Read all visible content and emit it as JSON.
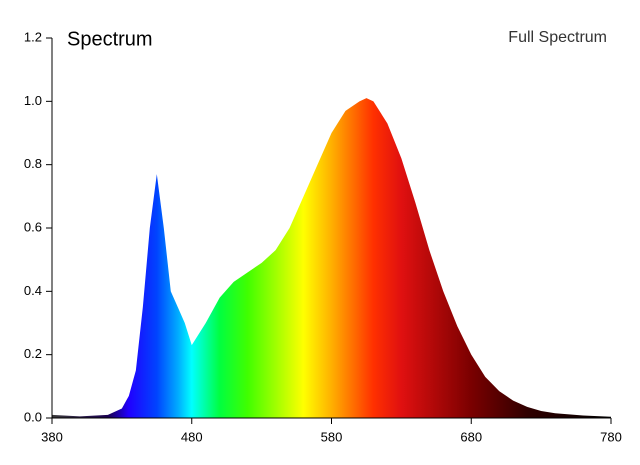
{
  "chart_data": {
    "type": "area",
    "title": "Spectrum",
    "annotation": "Full Spectrum",
    "x": [
      380,
      400,
      420,
      430,
      435,
      440,
      445,
      450,
      455,
      460,
      465,
      470,
      475,
      480,
      490,
      500,
      510,
      520,
      530,
      540,
      550,
      560,
      570,
      580,
      590,
      600,
      605,
      610,
      620,
      630,
      640,
      650,
      660,
      670,
      680,
      690,
      700,
      710,
      720,
      730,
      740,
      760,
      780
    ],
    "values": [
      0.01,
      0.005,
      0.01,
      0.03,
      0.07,
      0.15,
      0.35,
      0.6,
      0.77,
      0.6,
      0.4,
      0.35,
      0.3,
      0.23,
      0.3,
      0.38,
      0.43,
      0.46,
      0.49,
      0.53,
      0.6,
      0.7,
      0.8,
      0.9,
      0.97,
      1.0,
      1.01,
      1.0,
      0.93,
      0.82,
      0.68,
      0.53,
      0.4,
      0.29,
      0.2,
      0.13,
      0.085,
      0.055,
      0.035,
      0.022,
      0.015,
      0.008,
      0.004
    ],
    "xlim": [
      380,
      780
    ],
    "xticks": [
      380,
      480,
      580,
      680,
      780
    ],
    "ylim": [
      0,
      1.2
    ],
    "yticks": [
      {
        "value": 0,
        "label": "0.0"
      },
      0.2,
      0.4,
      0.6,
      0.8,
      {
        "value": 1,
        "label": "1.0"
      },
      1.2
    ],
    "grid": false
  }
}
